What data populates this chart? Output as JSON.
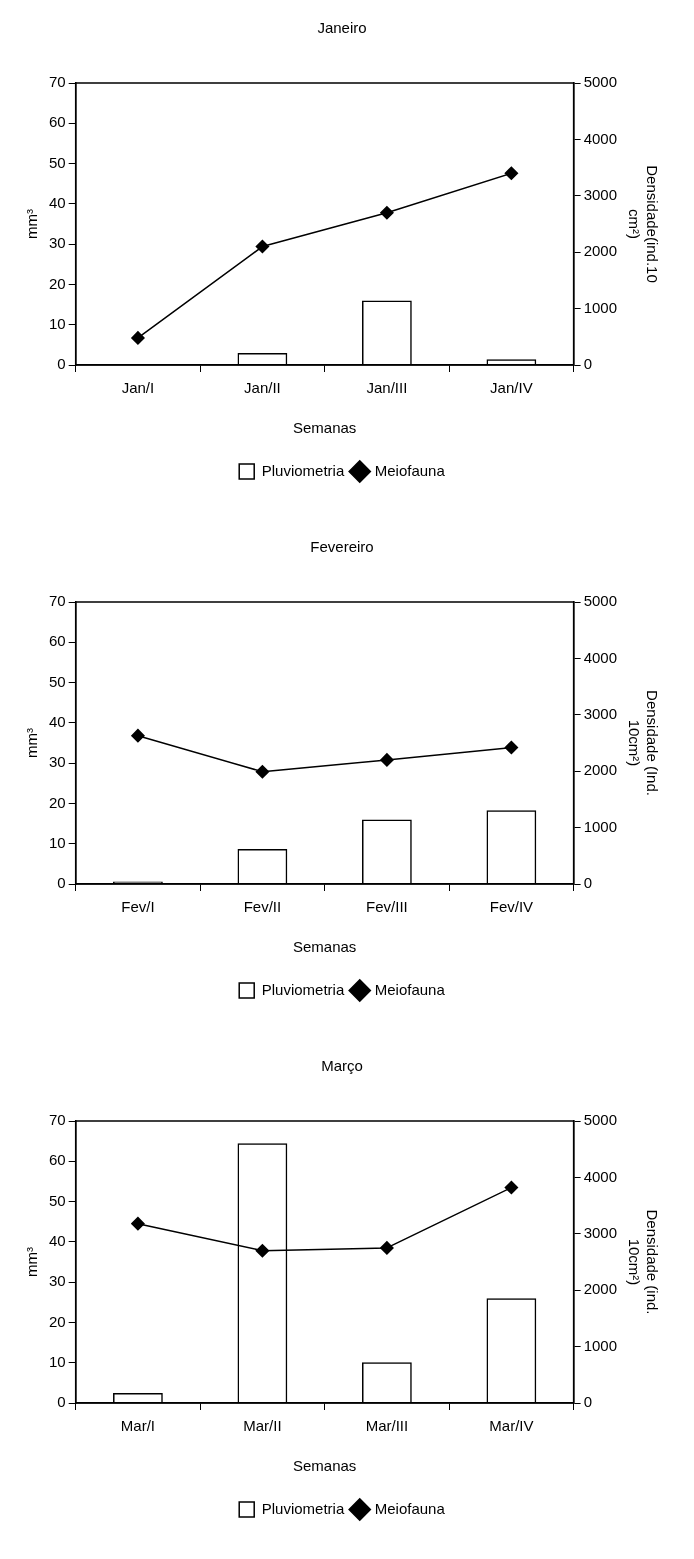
{
  "chart_data": [
    {
      "type": "bar",
      "title": "Janeiro",
      "xlabel": "Semanas",
      "ylabel": "mm³",
      "y2label": "Densidade(ind.10 cm²)",
      "categories": [
        "Jan/I",
        "Jan/II",
        "Jan/III",
        "Jan/IV"
      ],
      "series": [
        {
          "name": "Pluviometria",
          "color": "#000000",
          "values": [
            0,
            3,
            16,
            1.4
          ]
        },
        {
          "name": "Meiofauna",
          "type": "line",
          "axis": "y2",
          "color": "#000000",
          "values": [
            480,
            2100,
            2700,
            3400
          ]
        }
      ],
      "ylim": [
        0,
        70
      ],
      "yticks": [
        0,
        10,
        20,
        30,
        40,
        50,
        60,
        70
      ],
      "y2lim": [
        0,
        5000
      ],
      "y2ticks": [
        0,
        1000,
        2000,
        3000,
        4000,
        5000
      ],
      "grid": false,
      "legend": "bottom",
      "marker": "diamond",
      "line_style": "solid"
    },
    {
      "type": "bar",
      "title": "Fevereiro",
      "xlabel": "Semanas",
      "ylabel": "mm³",
      "y2label": "Densidade (Ind. 10cm²)",
      "categories": [
        "Fev/I",
        "Fev/II",
        "Fev/III",
        "Fev/IV"
      ],
      "series": [
        {
          "name": "Pluviometria",
          "color": "#000000",
          "values": [
            0.6,
            8.7,
            16,
            18.3
          ]
        },
        {
          "name": "Meiofauna",
          "type": "line",
          "axis": "y2",
          "color": "#000000",
          "values": [
            2630,
            1990,
            2200,
            2420
          ]
        }
      ],
      "ylim": [
        0,
        70
      ],
      "yticks": [
        0,
        10,
        20,
        30,
        40,
        50,
        60,
        70
      ],
      "y2lim": [
        0,
        5000
      ],
      "y2ticks": [
        0,
        1000,
        2000,
        3000,
        4000,
        5000
      ],
      "grid": false,
      "legend": "bottom",
      "marker": "diamond",
      "line_style": "solid"
    },
    {
      "type": "bar",
      "title": "Março",
      "xlabel": "Semanas",
      "ylabel": "mm³",
      "y2label": "Densidade (ind. 10cm²)",
      "categories": [
        "Mar/I",
        "Mar/II",
        "Mar/III",
        "Mar/IV"
      ],
      "series": [
        {
          "name": "Pluviometria",
          "color": "#000000",
          "values": [
            2.5,
            64.5,
            10.1,
            26
          ]
        },
        {
          "name": "Meiofauna",
          "type": "line",
          "axis": "y2",
          "color": "#000000",
          "values": [
            3180,
            2700,
            2750,
            3820
          ]
        }
      ],
      "ylim": [
        0,
        70
      ],
      "yticks": [
        0,
        10,
        20,
        30,
        40,
        50,
        60,
        70
      ],
      "y2lim": [
        0,
        5000
      ],
      "y2ticks": [
        0,
        1000,
        2000,
        3000,
        4000,
        5000
      ],
      "grid": false,
      "legend": "bottom",
      "marker": "diamond",
      "line_style": "solid"
    }
  ]
}
